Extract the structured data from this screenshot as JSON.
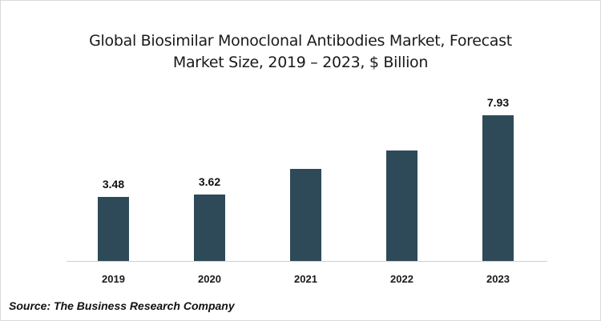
{
  "title": {
    "line1": "Global Biosimilar Monoclonal Antibodies Market, Forecast",
    "line2": "Market Size, 2019 – 2023, $ Billion"
  },
  "source": "Source: The Business Research Company",
  "colors": {
    "bar": "#2e4a58",
    "axis": "#d0d0d0",
    "border": "#d9d9d9"
  },
  "chart_data": {
    "type": "bar",
    "title": "Global Biosimilar Monoclonal Antibodies Market, Forecast Market Size, 2019 – 2023, $ Billion",
    "categories": [
      "2019",
      "2020",
      "2021",
      "2022",
      "2023"
    ],
    "values": [
      3.48,
      3.62,
      5.0,
      6.0,
      7.93
    ],
    "data_labels": [
      "3.48",
      "3.62",
      "",
      "",
      "7.93"
    ],
    "xlabel": "",
    "ylabel": "$ Billion",
    "ylim": [
      0,
      9
    ],
    "grid": false,
    "legend": null,
    "source": "Source: The Business Research Company"
  }
}
